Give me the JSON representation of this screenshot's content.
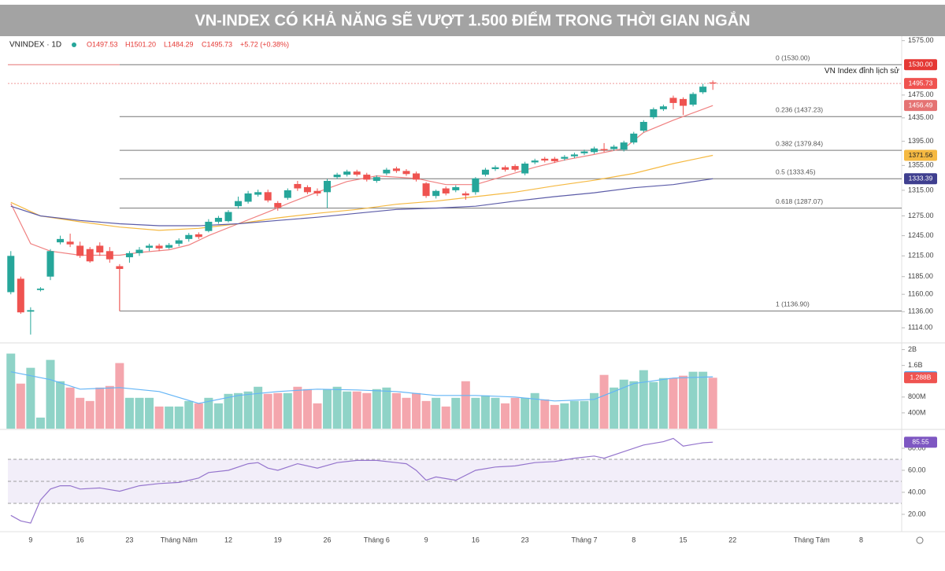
{
  "chart_data": [
    {
      "type": "candlestick",
      "title": "VN-INDEX CÓ KHẢ NĂNG SẼ VƯỢT 1.500 ĐIỂM TRONG THỜI GIAN NGẮN",
      "header": {
        "symbol": "VNINDEX · 1D",
        "ohlc": [
          "O1497.53",
          "H1501.20",
          "L1484.29",
          "C1495.73"
        ],
        "change": "+5.72 (+0.38%)"
      },
      "log": true,
      "xlim": [
        -0.3,
        90.1
      ],
      "ylim": [
        1095,
        1585
      ],
      "yticks": [
        {
          "value": 1575,
          "label": "1575.00"
        },
        {
          "value": 1475,
          "label": "1475.00"
        },
        {
          "value": 1435,
          "label": "1435.00"
        },
        {
          "value": 1395,
          "label": "1395.00"
        },
        {
          "value": 1355,
          "label": "1355.00"
        },
        {
          "value": 1315,
          "label": "1315.00"
        },
        {
          "value": 1275,
          "label": "1275.00"
        },
        {
          "value": 1245,
          "label": "1245.00"
        },
        {
          "value": 1215,
          "label": "1215.00"
        },
        {
          "value": 1185,
          "label": "1185.00"
        },
        {
          "value": 1160,
          "label": "1160.00"
        },
        {
          "value": 1136,
          "label": "1136.00"
        },
        {
          "value": 1114,
          "label": "1114.00"
        }
      ],
      "up_color": "#26a69a",
      "down_color": "#ef5350",
      "x": [
        0,
        1,
        2,
        3,
        4,
        5,
        6,
        7,
        8,
        9,
        10,
        11,
        12,
        13,
        14,
        15,
        16,
        17,
        18,
        19,
        20,
        21,
        22,
        23,
        24,
        25,
        26,
        27,
        28,
        29,
        30,
        31,
        32,
        33,
        34,
        35,
        36,
        37,
        38,
        39,
        40,
        41,
        42,
        43,
        44,
        45,
        46,
        47,
        48,
        49,
        50,
        51,
        52,
        53,
        54,
        55,
        56,
        57,
        58,
        59,
        60,
        61,
        62,
        63,
        64,
        65,
        66,
        67,
        68,
        69,
        70,
        71
      ],
      "open": [
        1163,
        1182,
        1136,
        1166,
        1185,
        1235,
        1236,
        1230,
        1225,
        1230,
        1222,
        1200,
        1213,
        1219,
        1227,
        1230,
        1227,
        1233,
        1240,
        1247,
        1252,
        1266,
        1267,
        1290,
        1297,
        1308,
        1312,
        1295,
        1303,
        1325,
        1320,
        1314,
        1312,
        1336,
        1340,
        1345,
        1340,
        1330,
        1342,
        1350,
        1346,
        1342,
        1326,
        1306,
        1318,
        1315,
        1310,
        1312,
        1340,
        1349,
        1352,
        1354,
        1342,
        1360,
        1366,
        1366,
        1366,
        1370,
        1375,
        1377,
        1382,
        1382,
        1381,
        1393,
        1413,
        1436,
        1450,
        1470,
        1468,
        1458,
        1480,
        1497.53
      ],
      "high": [
        1222,
        1185,
        1142,
        1170,
        1225,
        1245,
        1248,
        1236,
        1228,
        1235,
        1228,
        1203,
        1222,
        1228,
        1233,
        1233,
        1234,
        1241,
        1249,
        1250,
        1270,
        1275,
        1284,
        1305,
        1314,
        1316,
        1316,
        1298,
        1318,
        1330,
        1323,
        1318,
        1333,
        1343,
        1348,
        1348,
        1343,
        1339,
        1351,
        1353,
        1349,
        1345,
        1328,
        1316,
        1321,
        1323,
        1313,
        1336,
        1351,
        1355,
        1355,
        1357,
        1361,
        1366,
        1369,
        1369,
        1372,
        1376,
        1381,
        1386,
        1392,
        1389,
        1396,
        1411,
        1431,
        1453,
        1458,
        1474,
        1471,
        1480,
        1495,
        1501.2
      ],
      "low": [
        1160,
        1133,
        1105,
        1164,
        1180,
        1232,
        1228,
        1212,
        1205,
        1215,
        1205,
        1136.9,
        1205,
        1215,
        1222,
        1222,
        1225,
        1229,
        1236,
        1240,
        1250,
        1263,
        1265,
        1286,
        1294,
        1305,
        1296,
        1283,
        1300,
        1314,
        1309,
        1306,
        1287,
        1333,
        1337,
        1337,
        1329,
        1327,
        1339,
        1343,
        1338,
        1329,
        1303,
        1302,
        1307,
        1312,
        1300,
        1308,
        1337,
        1346,
        1345,
        1345,
        1339,
        1357,
        1360,
        1359,
        1363,
        1367,
        1372,
        1374,
        1377,
        1379,
        1378,
        1390,
        1410,
        1433,
        1447,
        1450,
        1440,
        1455,
        1477,
        1484.29
      ],
      "close": [
        1215,
        1135,
        1138,
        1168,
        1222,
        1240,
        1232,
        1215,
        1207,
        1220,
        1210,
        1196,
        1219,
        1224,
        1230,
        1226,
        1231,
        1238,
        1246,
        1243,
        1266,
        1272,
        1281,
        1298,
        1310,
        1312,
        1299,
        1288,
        1315,
        1318,
        1312,
        1310,
        1330,
        1340,
        1345,
        1340,
        1332,
        1336,
        1348,
        1346,
        1341,
        1332,
        1306,
        1314,
        1310,
        1320,
        1307,
        1334,
        1348,
        1352,
        1348,
        1348,
        1358,
        1363,
        1363,
        1362,
        1369,
        1373,
        1378,
        1383,
        1380,
        1386,
        1393,
        1408,
        1428,
        1450,
        1455,
        1461,
        1456,
        1477,
        1490,
        1495.73
      ],
      "lines": [
        {
          "color": "#f08080",
          "x": [
            0,
            2,
            4,
            7,
            11,
            13,
            16,
            18,
            20,
            23,
            26,
            28,
            31,
            34,
            37,
            41,
            44,
            47,
            50,
            53,
            56,
            59,
            62,
            64,
            67,
            71
          ],
          "values": [
            1294,
            1233,
            1222,
            1216,
            1216,
            1220,
            1224,
            1231,
            1245,
            1263,
            1281,
            1294,
            1312,
            1329,
            1338,
            1334,
            1324,
            1324,
            1338,
            1352,
            1364,
            1373,
            1383,
            1410,
            1431,
            1456.49
          ]
        },
        {
          "color": "#f5b942",
          "x": [
            0,
            3,
            7,
            11,
            15,
            19,
            23,
            27,
            31,
            35,
            39,
            43,
            47,
            51,
            55,
            59,
            63,
            67,
            71
          ],
          "values": [
            1296,
            1275,
            1266,
            1258,
            1253,
            1256,
            1263,
            1272,
            1279,
            1285,
            1293,
            1298,
            1305,
            1312,
            1322,
            1331,
            1342,
            1358,
            1371.56
          ]
        },
        {
          "color": "#5c5ca8",
          "x": [
            0,
            3,
            7,
            11,
            15,
            19,
            23,
            27,
            31,
            35,
            39,
            43,
            47,
            51,
            55,
            59,
            63,
            67,
            71
          ],
          "values": [
            1290,
            1275,
            1268,
            1263,
            1260,
            1260,
            1263,
            1268,
            1273,
            1279,
            1285,
            1287,
            1290,
            1298,
            1305,
            1311,
            1319,
            1324,
            1333.39
          ]
        }
      ],
      "fib_levels": [
        {
          "value": 1530,
          "label": "0 (1530.00)"
        },
        {
          "value": 1437.23,
          "label": "0.236 (1437.23)"
        },
        {
          "value": 1379.84,
          "label": "0.382 (1379.84)"
        },
        {
          "value": 1333.45,
          "label": "0.5 (1333.45)"
        },
        {
          "value": 1287.07,
          "label": "0.618 (1287.07)"
        },
        {
          "value": 1136.9,
          "label": "1 (1136.90)"
        }
      ],
      "annotation": {
        "text": "VN Index đỉnh lịch sử",
        "value": 1530
      },
      "tags": [
        {
          "value": 1530,
          "label": "1530.00",
          "color": "#e53935",
          "text_color": "#ffffff"
        },
        {
          "value": 1495.73,
          "label": "1495.73",
          "color": "#ef5350",
          "text_color": "#ffffff"
        },
        {
          "value": 1456.49,
          "label": "1456.49",
          "color": "#e57373",
          "text_color": "#ffffff"
        },
        {
          "value": 1371.56,
          "label": "1371.56",
          "color": "#f5b942",
          "text_color": "#222222"
        },
        {
          "value": 1333.39,
          "label": "1333.39",
          "color": "#3f3f8f",
          "text_color": "#ffffff"
        }
      ]
    },
    {
      "type": "bar",
      "xlim": [
        -0.3,
        90.1
      ],
      "ylim": [
        0,
        2150
      ],
      "yticks": [
        {
          "value": 400,
          "label": "400M"
        },
        {
          "value": 800,
          "label": "800M"
        },
        {
          "value": 1600,
          "label": "1.6B"
        },
        {
          "value": 2000,
          "label": "2B"
        }
      ],
      "up_color": "#8fd3c7",
      "down_color": "#f4a6ad",
      "values": [
        1900,
        1140,
        1540,
        280,
        1740,
        1200,
        1040,
        780,
        700,
        1040,
        1080,
        1660,
        780,
        780,
        780,
        560,
        560,
        560,
        700,
        640,
        780,
        640,
        880,
        900,
        940,
        1060,
        880,
        900,
        900,
        1060,
        1000,
        640,
        1000,
        1060,
        940,
        940,
        900,
        1000,
        1040,
        900,
        780,
        900,
        700,
        780,
        560,
        780,
        1200,
        780,
        840,
        780,
        640,
        780,
        780,
        900,
        740,
        600,
        640,
        700,
        700,
        900,
        1360,
        1040,
        1240,
        1200,
        1480,
        1180,
        1280,
        1280,
        1340,
        1440,
        1440,
        1288
      ],
      "ma": {
        "color": "#64b5f6",
        "x": [
          0,
          4,
          7,
          11,
          15,
          19,
          23,
          27,
          31,
          35,
          39,
          43,
          47,
          51,
          55,
          59,
          61,
          63,
          67,
          71
        ],
        "values": [
          1440,
          1240,
          1000,
          1040,
          940,
          640,
          840,
          940,
          1000,
          980,
          940,
          840,
          840,
          800,
          700,
          740,
          940,
          1140,
          1280,
          1312
        ]
      },
      "tags": [
        {
          "value": 1312,
          "label": "1.312B",
          "color": "#42a5f5",
          "text_color": "#ffffff"
        },
        {
          "value": 1288,
          "label": "1.288B",
          "color": "#ef5350",
          "text_color": "#ffffff"
        }
      ]
    },
    {
      "type": "line",
      "xlim": [
        -0.3,
        90.1
      ],
      "ylim": [
        7.1,
        95.7
      ],
      "yticks": [
        {
          "value": 80,
          "label": "80.00"
        },
        {
          "value": 60,
          "label": "60.00"
        },
        {
          "value": 40,
          "label": "40.00"
        },
        {
          "value": 20,
          "label": "20.00"
        }
      ],
      "band": [
        30,
        70
      ],
      "reference_lines": [
        30,
        50,
        70
      ],
      "series": [
        {
          "color": "#9575cd",
          "x": [
            0,
            1,
            2,
            3,
            4,
            5,
            6,
            7,
            9,
            11,
            13,
            15,
            17,
            19,
            20,
            22,
            24,
            25,
            26,
            27,
            29,
            31,
            33,
            35,
            37,
            39,
            40,
            41,
            42,
            43,
            45,
            47,
            49,
            51,
            53,
            55,
            57,
            59,
            60,
            62,
            64,
            66,
            67,
            68,
            70,
            71
          ],
          "values": [
            19,
            14,
            12,
            33,
            43,
            46,
            46,
            43,
            44,
            41,
            46,
            48,
            49,
            53,
            58,
            60,
            66,
            67,
            62,
            60,
            66,
            62,
            67,
            69,
            69,
            67,
            66,
            60,
            51,
            54,
            51,
            60,
            63,
            64,
            67,
            68,
            71,
            73,
            71,
            77,
            83,
            86,
            89,
            82,
            85,
            85.55
          ]
        }
      ],
      "tags": [
        {
          "value": 85.55,
          "color": "#7e57c2",
          "text_color": "#ffffff"
        }
      ],
      "xticks": [
        {
          "value": 2,
          "label": "9"
        },
        {
          "value": 7,
          "label": "16"
        },
        {
          "value": 12,
          "label": "23"
        },
        {
          "value": 17,
          "label": "Tháng Năm"
        },
        {
          "value": 22,
          "label": "12"
        },
        {
          "value": 27,
          "label": "19"
        },
        {
          "value": 32,
          "label": "26"
        },
        {
          "value": 37,
          "label": "Tháng 6"
        },
        {
          "value": 42,
          "label": "9"
        },
        {
          "value": 47,
          "label": "16"
        },
        {
          "value": 52,
          "label": "23"
        },
        {
          "value": 58,
          "label": "Tháng 7"
        },
        {
          "value": 63,
          "label": "8"
        },
        {
          "value": 68,
          "label": "15"
        },
        {
          "value": 73,
          "label": "22"
        },
        {
          "value": 81,
          "label": "Tháng Tám"
        },
        {
          "value": 86,
          "label": "8"
        }
      ]
    }
  ]
}
